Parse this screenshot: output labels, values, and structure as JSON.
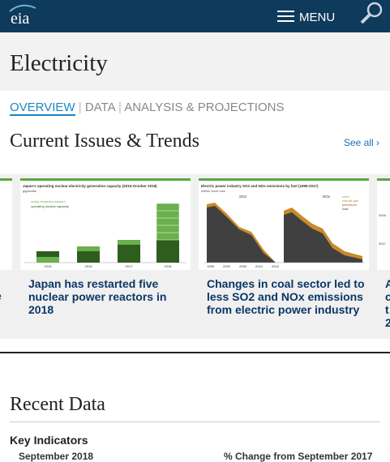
{
  "header": {
    "logo": "eia",
    "menu": "MENU"
  },
  "page_title": "Electricity",
  "tabs": [
    "OVERVIEW",
    "DATA",
    "ANALYSIS & PROJECTIONS"
  ],
  "section_title": "Current Issues & Trends",
  "see_all": "See all ›",
  "cards": [
    {
      "caption": "Japan has restarted five nuclear power reactors in 2018",
      "thumbnail": {
        "title": "Japan's operating nuclear electricity generation capacity (2015-October 2018)",
        "unit": "gigawatts",
        "legend": [
          "newly restarted reactors",
          "operating nuclear capacity"
        ],
        "years": [
          "2015",
          "2016",
          "2017",
          "2018"
        ]
      }
    },
    {
      "caption": "Changes in coal sector led to less SO2 and NOx emissions from electric power industry",
      "thumbnail": {
        "title": "Electric power industry SO2 and NOx emissions by fuel (1995-2017)",
        "unit": "million short tons",
        "panels": [
          "SO2",
          "NOx"
        ],
        "legend": [
          "other",
          "natural gas",
          "petroleum",
          "coal"
        ],
        "years": [
          "1995",
          "2000",
          "2005",
          "2010",
          "2015"
        ]
      }
    }
  ],
  "partial_left": {
    "caption": "e"
  },
  "partial_right": {
    "caption": [
      "A",
      "c",
      "t",
      "2"
    ],
    "thumbnail": [
      "2016",
      "2017"
    ]
  },
  "recent_title": "Recent Data",
  "key_indicators": "Key Indicators",
  "period": "September 2018",
  "change_label": "% Change from September 2017"
}
